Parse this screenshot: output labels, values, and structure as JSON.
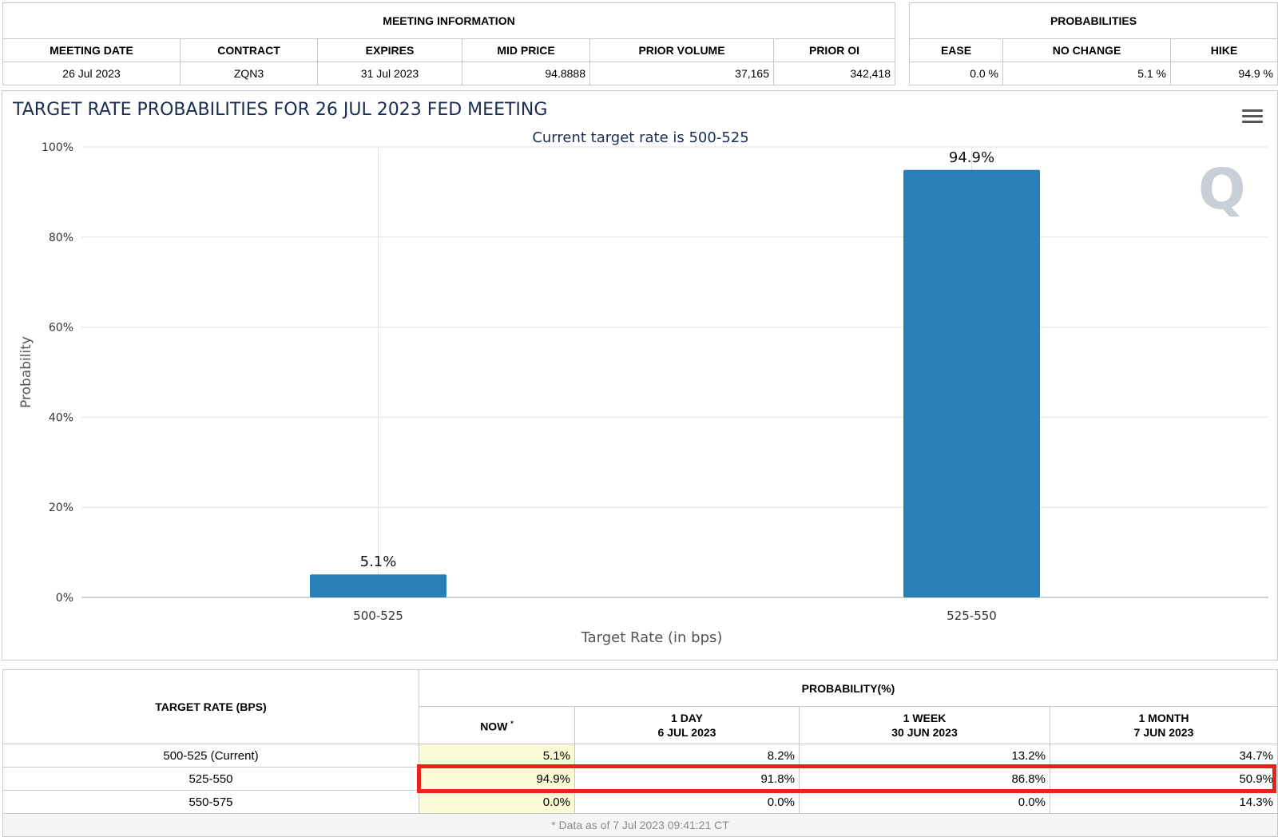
{
  "meeting_info": {
    "header": "MEETING INFORMATION",
    "columns": [
      "MEETING DATE",
      "CONTRACT",
      "EXPIRES",
      "MID PRICE",
      "PRIOR VOLUME",
      "PRIOR OI"
    ],
    "row": [
      "26 Jul 2023",
      "ZQN3",
      "31 Jul 2023",
      "94.8888",
      "37,165",
      "342,418"
    ]
  },
  "probabilities": {
    "header": "PROBABILITIES",
    "columns": [
      "EASE",
      "NO CHANGE",
      "HIKE"
    ],
    "row": [
      "0.0 %",
      "5.1 %",
      "94.9 %"
    ]
  },
  "chart_data": {
    "type": "bar",
    "title": "TARGET RATE PROBABILITIES FOR 26 JUL 2023 FED MEETING",
    "subtitle": "Current target rate is 500-525",
    "categories": [
      "500-525",
      "525-550"
    ],
    "values": [
      5.1,
      94.9
    ],
    "data_labels": [
      "5.1%",
      "94.9%"
    ],
    "xlabel": "Target Rate (in bps)",
    "ylabel": "Probability",
    "ylim": [
      0,
      100
    ],
    "yticks": [
      "0%",
      "20%",
      "40%",
      "60%",
      "80%",
      "100%"
    ],
    "bar_color": "#2980b9",
    "grid": true
  },
  "watermark": "Q",
  "rate_table": {
    "target_header": "TARGET RATE (BPS)",
    "prob_header": "PROBABILITY(%)",
    "cols": [
      {
        "line1": "NOW",
        "line2": "",
        "star": "*"
      },
      {
        "line1": "1 DAY",
        "line2": "6 JUL 2023",
        "star": ""
      },
      {
        "line1": "1 WEEK",
        "line2": "30 JUN 2023",
        "star": ""
      },
      {
        "line1": "1 MONTH",
        "line2": "7 JUN 2023",
        "star": ""
      }
    ],
    "rows": [
      {
        "rate": "500-525 (Current)",
        "values": [
          "5.1%",
          "8.2%",
          "13.2%",
          "34.7%"
        ]
      },
      {
        "rate": "525-550",
        "values": [
          "94.9%",
          "91.8%",
          "86.8%",
          "50.9%"
        ]
      },
      {
        "rate": "550-575",
        "values": [
          "0.0%",
          "0.0%",
          "0.0%",
          "14.3%"
        ]
      }
    ],
    "footnote": "* Data as of 7 Jul 2023 09:41:21 CT"
  },
  "highlight_color": "#e8231b"
}
